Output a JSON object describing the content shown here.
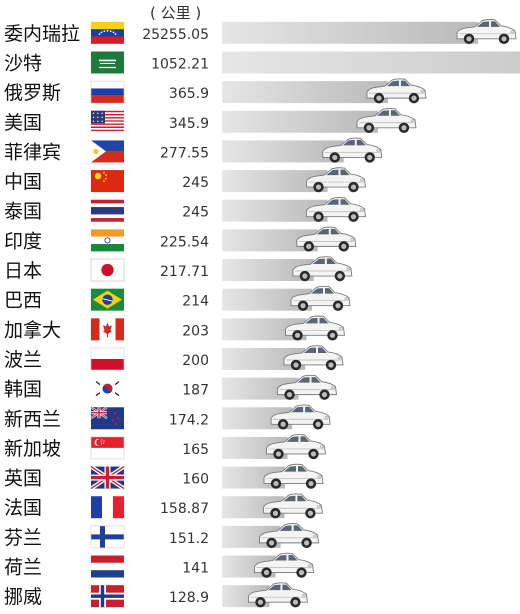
{
  "header": {
    "unit": "( 公里 )"
  },
  "colors": {
    "bar_light": "#e6e6e6",
    "bar_dark": "#b9b9b9",
    "car_body": "#f4f4f4",
    "car_outline": "#7a7a7a"
  },
  "chart_data": {
    "type": "bar",
    "orientation": "horizontal",
    "unit": "公里",
    "value_labels": [
      "25255.05",
      "1052.21",
      "365.9",
      "345.9",
      "277.55",
      "245",
      "245",
      "225.54",
      "217.71",
      "214",
      "203",
      "200",
      "187",
      "174.2",
      "165",
      "160",
      "158.87",
      "151.2",
      "141",
      "128.9"
    ],
    "rows": [
      {
        "country": "委内瑞拉",
        "value": 25255.05,
        "flag": "venezuela-flag"
      },
      {
        "country": "沙特",
        "value": 1052.21,
        "flag": "saudi-arabia-flag"
      },
      {
        "country": "俄罗斯",
        "value": 365.9,
        "flag": "russia-flag"
      },
      {
        "country": "美国",
        "value": 345.9,
        "flag": "usa-flag"
      },
      {
        "country": "菲律宾",
        "value": 277.55,
        "flag": "philippines-flag"
      },
      {
        "country": "中国",
        "value": 245,
        "flag": "china-flag"
      },
      {
        "country": "泰国",
        "value": 245,
        "flag": "thailand-flag"
      },
      {
        "country": "印度",
        "value": 225.54,
        "flag": "india-flag"
      },
      {
        "country": "日本",
        "value": 217.71,
        "flag": "japan-flag"
      },
      {
        "country": "巴西",
        "value": 214,
        "flag": "brazil-flag"
      },
      {
        "country": "加拿大",
        "value": 203,
        "flag": "canada-flag"
      },
      {
        "country": "波兰",
        "value": 200,
        "flag": "poland-flag"
      },
      {
        "country": "韩国",
        "value": 187,
        "flag": "south-korea-flag"
      },
      {
        "country": "新西兰",
        "value": 174.2,
        "flag": "new-zealand-flag"
      },
      {
        "country": "新加坡",
        "value": 165,
        "flag": "singapore-flag"
      },
      {
        "country": "英国",
        "value": 160,
        "flag": "uk-flag"
      },
      {
        "country": "法国",
        "value": 158.87,
        "flag": "france-flag"
      },
      {
        "country": "芬兰",
        "value": 151.2,
        "flag": "finland-flag"
      },
      {
        "country": "荷兰",
        "value": 141,
        "flag": "netherlands-flag"
      },
      {
        "country": "挪威",
        "value": 128.9,
        "flag": "norway-flag"
      }
    ]
  }
}
